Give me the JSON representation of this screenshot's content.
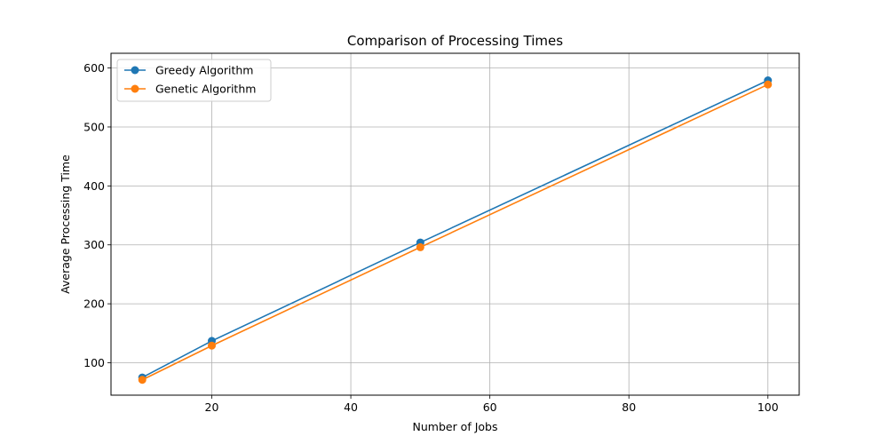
{
  "chart_data": {
    "type": "line",
    "title": "Comparison of Processing Times",
    "xlabel": "Number of Jobs",
    "ylabel": "Average Processing Time",
    "x": [
      10,
      20,
      50,
      100
    ],
    "xlim": [
      5.5,
      104.5
    ],
    "ylim": [
      45,
      625
    ],
    "xticks": [
      20,
      40,
      60,
      80,
      100
    ],
    "yticks": [
      100,
      200,
      300,
      400,
      500,
      600
    ],
    "grid": true,
    "legend_position": "upper-left",
    "series": [
      {
        "name": "Greedy Algorithm",
        "color": "#1f77b4",
        "marker": "circle",
        "values": [
          75,
          137,
          304,
          579
        ]
      },
      {
        "name": "Genetic Algorithm",
        "color": "#ff7f0e",
        "marker": "circle",
        "values": [
          71,
          129,
          296,
          572
        ]
      }
    ]
  }
}
